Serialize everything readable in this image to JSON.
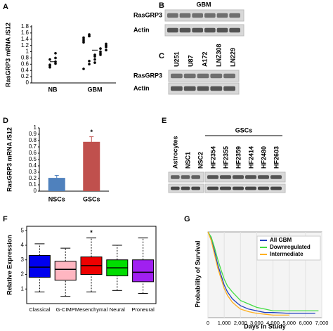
{
  "chart_data": [
    {
      "type": "dot",
      "label": "A",
      "ylabel": "RasGRP3 mRNA /S12",
      "categories": [
        "NB",
        "GBM"
      ],
      "points": [
        [
          0.5,
          0.62,
          0.75,
          0.95,
          0.55,
          0.68,
          0.58,
          0.8
        ],
        [
          0.45,
          0.7,
          0.9,
          1.1,
          1.25,
          1.45,
          0.6,
          0.85,
          1.0,
          1.2,
          1.4,
          1.55,
          0.75,
          0.95,
          1.05,
          1.3,
          1.5,
          0.65,
          0.9,
          1.15,
          1.35,
          1.5
        ]
      ],
      "means": [
        0.68,
        1.05
      ],
      "color": "#000000",
      "ylim": [
        0,
        1.8
      ],
      "yticks": [
        0,
        0.2,
        0.4,
        0.6,
        0.8,
        1,
        1.2,
        1.4,
        1.6,
        1.8
      ]
    },
    {
      "type": "bar",
      "label": "D",
      "ylabel": "RasGRP3 mRNA /S12",
      "categories": [
        "NSCs",
        "GSCs"
      ],
      "values": [
        0.21,
        0.78
      ],
      "errors": [
        0.04,
        0.08
      ],
      "colors": [
        "#4f81bd",
        "#c0504d"
      ],
      "ylim": [
        0,
        1
      ],
      "yticks": [
        0,
        0.1,
        0.2,
        0.3,
        0.4,
        0.5,
        0.6,
        0.7,
        0.8,
        0.9,
        1
      ],
      "annotation": {
        "text": "*",
        "category": "GSCs"
      }
    },
    {
      "type": "box",
      "label": "F",
      "ylabel": "Relative Expression",
      "categories": [
        "Classical",
        "G-CIMP",
        "Mesenchymal",
        "Neural",
        "Proneural"
      ],
      "colors": [
        "#0000ee",
        "#ffb6c1",
        "#ee0000",
        "#00dd00",
        "#a020f0"
      ],
      "boxes": [
        {
          "min": 0.8,
          "q1": 1.8,
          "median": 2.5,
          "q3": 3.3,
          "max": 4.1
        },
        {
          "min": 0.5,
          "q1": 1.6,
          "median": 2.35,
          "q3": 2.9,
          "max": 3.8
        },
        {
          "min": 0.8,
          "q1": 2.0,
          "median": 2.6,
          "q3": 3.2,
          "max": 4.5
        },
        {
          "min": 0.9,
          "q1": 1.9,
          "median": 2.45,
          "q3": 3.0,
          "max": 4.0
        },
        {
          "min": 0.7,
          "q1": 1.5,
          "median": 2.15,
          "q3": 3.0,
          "max": 4.5
        }
      ],
      "ylim": [
        0,
        5.3
      ],
      "yticks": [
        1,
        2,
        3,
        4,
        5
      ],
      "annotation": {
        "text": "*",
        "category": "Mesenchymal"
      }
    },
    {
      "type": "survival",
      "label": "G",
      "xlabel": "Days in Study",
      "ylabel": "Probability of Survival",
      "xlim": [
        0,
        7000
      ],
      "ylim": [
        0,
        1
      ],
      "xticks": [
        0,
        {
          "value": 1000,
          "label": "1,000"
        },
        {
          "value": 2000,
          "label": "2,000"
        },
        {
          "value": 3000,
          "label": "3,000"
        },
        {
          "value": 4000,
          "label": "4,000"
        },
        {
          "value": 5000,
          "label": "5,000"
        },
        {
          "value": 6000,
          "label": "6,000"
        },
        {
          "value": 7000,
          "label": "7,000"
        }
      ],
      "legend": "upper right",
      "series": [
        {
          "name": "All GBM",
          "color": "#1f3fbf",
          "x": [
            0,
            200,
            400,
            600,
            800,
            1000,
            1200,
            1500,
            1800,
            2000,
            2500,
            3000,
            3500,
            4000,
            5000,
            6000,
            6600
          ],
          "values": [
            1,
            0.92,
            0.78,
            0.62,
            0.5,
            0.38,
            0.3,
            0.22,
            0.17,
            0.14,
            0.1,
            0.08,
            0.06,
            0.06,
            0.05,
            0.05,
            0.05
          ]
        },
        {
          "name": "Downregulated",
          "color": "#44dd44",
          "x": [
            0,
            200,
            400,
            600,
            800,
            1000,
            1200,
            1500,
            1800,
            2000,
            2500,
            3000,
            3500,
            4000,
            5000,
            6000,
            6800
          ],
          "values": [
            1,
            0.94,
            0.82,
            0.68,
            0.56,
            0.45,
            0.37,
            0.3,
            0.24,
            0.2,
            0.16,
            0.12,
            0.1,
            0.08,
            0.08,
            0.08,
            0.08
          ]
        },
        {
          "name": "Intermediate",
          "color": "#ffb020",
          "x": [
            0,
            200,
            400,
            600,
            800,
            1000,
            1200,
            1500,
            1800,
            2000,
            2500,
            3000,
            3500,
            4000,
            5000
          ],
          "values": [
            1,
            0.9,
            0.74,
            0.58,
            0.46,
            0.34,
            0.26,
            0.18,
            0.13,
            0.1,
            0.07,
            0.05,
            0.04,
            0.03,
            0.03
          ]
        }
      ]
    }
  ],
  "blots": {
    "B": {
      "label": "B",
      "title": "GBM",
      "rows": [
        "RasGRP3",
        "Actin"
      ]
    },
    "C": {
      "label": "C",
      "lanes": [
        "U251",
        "U87",
        "A172",
        "LNZ308",
        "LN229"
      ],
      "rows": [
        "RasGRP3",
        "Actin"
      ]
    },
    "E": {
      "label": "E",
      "lanes": [
        "Astrocytes",
        "NSC1",
        "NSC2",
        "HF2354",
        "HF2355",
        "HF2359",
        "HF2414",
        "HF2480",
        "HF2603"
      ],
      "group": "GSCs"
    }
  }
}
